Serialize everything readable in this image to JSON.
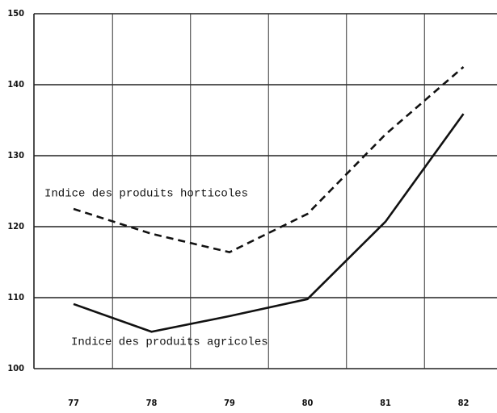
{
  "chart_data": {
    "type": "line",
    "categories": [
      "77",
      "78",
      "79",
      "80",
      "81",
      "82"
    ],
    "series": [
      {
        "name": "Indice des produits horticoles",
        "color": "#111111",
        "style": "dashed",
        "values": [
          122.5,
          119,
          116.4,
          121.8,
          133,
          142.5
        ]
      },
      {
        "name": "Indice des produits agricoles",
        "color": "#111111",
        "style": "solid",
        "values": [
          109.1,
          105.2,
          107.4,
          109.8,
          120.7,
          135.9
        ]
      }
    ],
    "ylim": [
      100,
      150
    ],
    "yticks": [
      100,
      110,
      120,
      130,
      140,
      150
    ],
    "grid": true
  }
}
